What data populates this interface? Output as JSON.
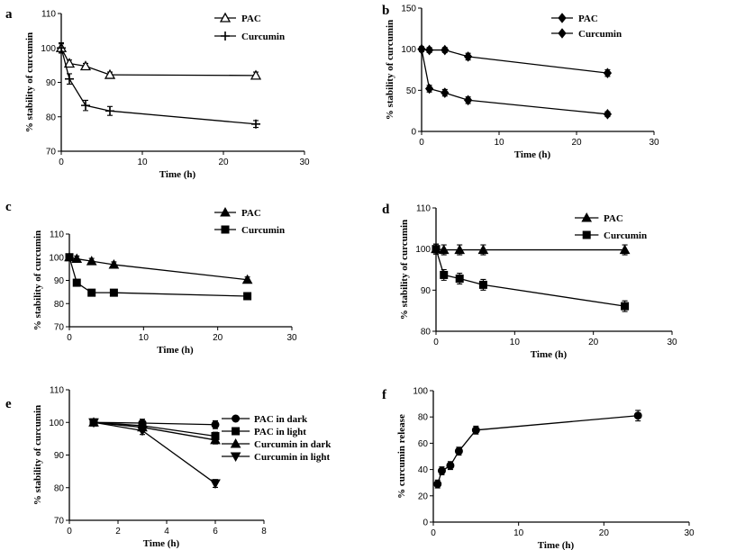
{
  "chart_data": [
    {
      "id": "a",
      "panel_letter": "a",
      "type": "line",
      "xlabel": "Time  (h)",
      "ylabel": "% stability of curcumin",
      "xlim": [
        0,
        30
      ],
      "ylim": [
        70,
        110
      ],
      "xticks": [
        0,
        10,
        20,
        30
      ],
      "yticks": [
        70,
        80,
        90,
        100,
        110
      ],
      "legend_position": "top-right",
      "series": [
        {
          "name": "PAC",
          "marker": "triangle-open",
          "x": [
            0,
            1,
            3,
            6,
            24
          ],
          "values": [
            100,
            95.5,
            94.7,
            92.2,
            92.0
          ],
          "errors": [
            1.2,
            1.0,
            0.8,
            0.8,
            1.0
          ]
        },
        {
          "name": "Curcumin",
          "marker": "plus",
          "x": [
            0,
            1,
            3,
            6,
            24
          ],
          "values": [
            100,
            91,
            83.3,
            81.7,
            77.9
          ],
          "errors": [
            1.5,
            1.5,
            1.5,
            1.3,
            1.0
          ]
        }
      ]
    },
    {
      "id": "b",
      "panel_letter": "b",
      "type": "line",
      "xlabel": "Time  (h)",
      "ylabel": "% stability of curcumin",
      "xlim": [
        0,
        30
      ],
      "ylim": [
        0,
        150
      ],
      "xticks": [
        0,
        10,
        20,
        30
      ],
      "yticks": [
        0,
        50,
        100,
        150
      ],
      "legend_position": "top-right",
      "series": [
        {
          "name": "PAC",
          "marker": "diamond",
          "x": [
            0,
            1,
            3,
            6,
            24
          ],
          "values": [
            100,
            99,
            99,
            91,
            71
          ],
          "errors": [
            3,
            3,
            3,
            4,
            4
          ]
        },
        {
          "name": "Curcumin",
          "marker": "diamond",
          "x": [
            0,
            1,
            3,
            6,
            24
          ],
          "values": [
            100,
            52,
            47,
            38,
            21
          ],
          "errors": [
            3,
            4,
            4,
            4,
            3
          ]
        }
      ]
    },
    {
      "id": "c",
      "panel_letter": "c",
      "type": "line",
      "xlabel": "Time  (h)",
      "ylabel": "% stability of curcumin",
      "xlim": [
        0,
        30
      ],
      "ylim": [
        70,
        110
      ],
      "xticks": [
        0,
        10,
        20,
        30
      ],
      "yticks": [
        70,
        80,
        90,
        100,
        110
      ],
      "legend_position": "top-right",
      "series": [
        {
          "name": "PAC",
          "marker": "triangle",
          "x": [
            0,
            1,
            3,
            6,
            24
          ],
          "values": [
            100,
            99.3,
            98.3,
            96.8,
            90.3
          ],
          "errors": [
            1,
            1.2,
            1.2,
            1.2,
            1.2
          ]
        },
        {
          "name": "Curcumin",
          "marker": "square",
          "x": [
            0,
            1,
            3,
            6,
            24
          ],
          "values": [
            100,
            89,
            84.7,
            84.7,
            83.2
          ],
          "errors": [
            1,
            1.2,
            1.3,
            1.2,
            1.2
          ]
        }
      ]
    },
    {
      "id": "d",
      "panel_letter": "d",
      "type": "line",
      "xlabel": "Time  (h)",
      "ylabel": "% stability of curcumin",
      "xlim": [
        0,
        30
      ],
      "ylim": [
        80,
        110
      ],
      "xticks": [
        0,
        10,
        20,
        30
      ],
      "yticks": [
        80,
        90,
        100,
        110
      ],
      "legend_position": "top-right",
      "series": [
        {
          "name": "PAC",
          "marker": "triangle",
          "x": [
            0,
            1,
            3,
            6,
            24
          ],
          "values": [
            100,
            99.8,
            99.8,
            99.8,
            99.8
          ],
          "errors": [
            1.2,
            1.2,
            1.2,
            1.2,
            1.2
          ]
        },
        {
          "name": "Curcumin",
          "marker": "square",
          "x": [
            0,
            1,
            3,
            6,
            24
          ],
          "values": [
            100,
            93.7,
            92.8,
            91.3,
            86.1
          ],
          "errors": [
            1.2,
            1.3,
            1.3,
            1.3,
            1.3
          ]
        }
      ]
    },
    {
      "id": "e",
      "panel_letter": "e",
      "type": "line",
      "xlabel": "Time  (h)",
      "ylabel": "% stability of curcumin",
      "xlim": [
        0,
        8
      ],
      "ylim": [
        70,
        110
      ],
      "xticks": [
        0,
        2,
        4,
        6,
        8
      ],
      "yticks": [
        70,
        80,
        90,
        100,
        110
      ],
      "legend_position": "right",
      "series": [
        {
          "name": "PAC in dark",
          "marker": "circle",
          "x": [
            1,
            3,
            6
          ],
          "values": [
            100,
            99.8,
            99.3
          ],
          "errors": [
            1,
            1.2,
            1.2
          ]
        },
        {
          "name": "PAC in light",
          "marker": "square",
          "x": [
            1,
            3,
            6
          ],
          "values": [
            100,
            99.0,
            95.8
          ],
          "errors": [
            1,
            1.2,
            1.2
          ]
        },
        {
          "name": "Curcumin in dark",
          "marker": "triangle",
          "x": [
            1,
            3,
            6
          ],
          "values": [
            100,
            98.5,
            94.6
          ],
          "errors": [
            1,
            1.2,
            1.2
          ]
        },
        {
          "name": "Curcumin in light",
          "marker": "triangle-down",
          "x": [
            1,
            3,
            6
          ],
          "values": [
            100,
            97.5,
            81.3
          ],
          "errors": [
            1,
            1.2,
            1.2
          ]
        }
      ]
    },
    {
      "id": "f",
      "panel_letter": "f",
      "type": "line",
      "xlabel": "Time (h)",
      "ylabel": "% curcumin release",
      "xlim": [
        0,
        30
      ],
      "ylim": [
        0,
        100
      ],
      "xticks": [
        0,
        10,
        20,
        30
      ],
      "yticks": [
        0,
        20,
        40,
        60,
        80,
        100
      ],
      "legend_position": "none",
      "series": [
        {
          "name": "Curcumin release",
          "marker": "circle",
          "x": [
            0.5,
            1,
            2,
            3,
            5,
            24
          ],
          "values": [
            29,
            39,
            43,
            54,
            70,
            81
          ],
          "errors": [
            3,
            3,
            3,
            3,
            3,
            4
          ]
        }
      ]
    }
  ]
}
